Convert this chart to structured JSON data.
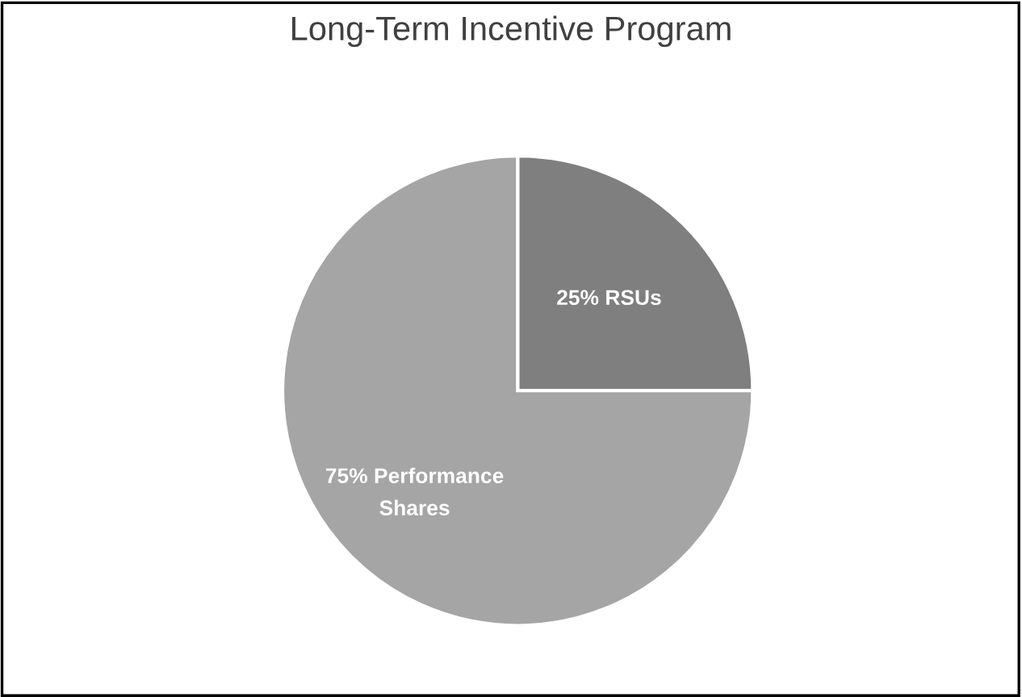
{
  "chart_data": {
    "type": "pie",
    "title": "Long-Term Incentive Program",
    "categories": [
      "25% RSUs",
      "75% Performance Shares"
    ],
    "values": [
      25,
      75
    ],
    "colors": [
      "#7f7f7f",
      "#a5a5a5"
    ]
  }
}
